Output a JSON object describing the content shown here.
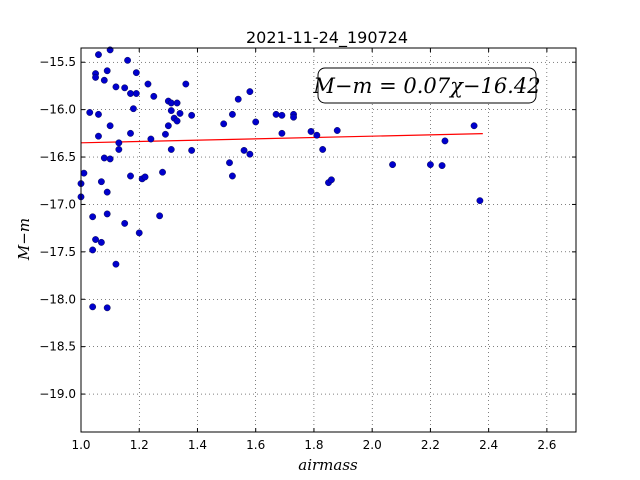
{
  "chart_data": {
    "type": "scatter",
    "title": "2021-11-24_190724",
    "xlabel": "airmass",
    "ylabel": "M−m",
    "xlim": [
      1.0,
      2.7
    ],
    "ylim": [
      -19.4,
      -15.35
    ],
    "y_inverted": true,
    "grid": true,
    "x_ticks": [
      1.0,
      1.2,
      1.4,
      1.6,
      1.8,
      2.0,
      2.2,
      2.4,
      2.6
    ],
    "x_tick_labels": [
      "1.0",
      "1.2",
      "1.4",
      "1.6",
      "1.8",
      "2.0",
      "2.2",
      "2.4",
      "2.6"
    ],
    "y_ticks": [
      -15.5,
      -16.0,
      -16.5,
      -17.0,
      -17.5,
      -18.0,
      -18.5,
      -19.0
    ],
    "y_tick_labels": [
      "−15.5",
      "−16.0",
      "−16.5",
      "−17.0",
      "−17.5",
      "−18.0",
      "−18.5",
      "−19.0"
    ],
    "annotation": "M−m = 0.07χ−16.42",
    "point_color": "#0000cc",
    "fit_color": "#ff0000",
    "points": [
      [
        1.0,
        -16.78
      ],
      [
        1.0,
        -16.92
      ],
      [
        1.01,
        -16.67
      ],
      [
        1.03,
        -16.03
      ],
      [
        1.04,
        -17.13
      ],
      [
        1.04,
        -17.48
      ],
      [
        1.04,
        -18.08
      ],
      [
        1.05,
        -15.62
      ],
      [
        1.05,
        -15.66
      ],
      [
        1.05,
        -17.37
      ],
      [
        1.06,
        -15.42
      ],
      [
        1.06,
        -16.05
      ],
      [
        1.06,
        -16.28
      ],
      [
        1.07,
        -16.76
      ],
      [
        1.07,
        -17.4
      ],
      [
        1.08,
        -16.51
      ],
      [
        1.08,
        -15.69
      ],
      [
        1.09,
        -15.59
      ],
      [
        1.09,
        -16.87
      ],
      [
        1.09,
        -17.1
      ],
      [
        1.09,
        -18.09
      ],
      [
        1.1,
        -15.37
      ],
      [
        1.1,
        -16.17
      ],
      [
        1.1,
        -16.52
      ],
      [
        1.12,
        -17.63
      ],
      [
        1.12,
        -15.76
      ],
      [
        1.13,
        -16.35
      ],
      [
        1.13,
        -16.42
      ],
      [
        1.15,
        -17.2
      ],
      [
        1.15,
        -15.77
      ],
      [
        1.16,
        -15.48
      ],
      [
        1.17,
        -15.83
      ],
      [
        1.17,
        -16.25
      ],
      [
        1.17,
        -16.7
      ],
      [
        1.18,
        -15.99
      ],
      [
        1.19,
        -15.61
      ],
      [
        1.19,
        -15.83
      ],
      [
        1.2,
        -17.3
      ],
      [
        1.21,
        -16.73
      ],
      [
        1.22,
        -16.71
      ],
      [
        1.23,
        -15.73
      ],
      [
        1.24,
        -16.31
      ],
      [
        1.25,
        -15.86
      ],
      [
        1.27,
        -17.12
      ],
      [
        1.28,
        -16.66
      ],
      [
        1.29,
        -16.26
      ],
      [
        1.3,
        -15.91
      ],
      [
        1.3,
        -16.17
      ],
      [
        1.31,
        -15.93
      ],
      [
        1.31,
        -16.01
      ],
      [
        1.31,
        -16.42
      ],
      [
        1.32,
        -16.09
      ],
      [
        1.33,
        -15.93
      ],
      [
        1.33,
        -16.12
      ],
      [
        1.34,
        -16.04
      ],
      [
        1.36,
        -15.73
      ],
      [
        1.38,
        -16.43
      ],
      [
        1.38,
        -16.06
      ],
      [
        1.49,
        -16.15
      ],
      [
        1.51,
        -16.56
      ],
      [
        1.52,
        -16.7
      ],
      [
        1.52,
        -16.05
      ],
      [
        1.54,
        -15.89
      ],
      [
        1.56,
        -16.43
      ],
      [
        1.58,
        -15.81
      ],
      [
        1.58,
        -16.47
      ],
      [
        1.6,
        -16.13
      ],
      [
        1.67,
        -16.05
      ],
      [
        1.69,
        -16.06
      ],
      [
        1.69,
        -16.25
      ],
      [
        1.73,
        -16.05
      ],
      [
        1.73,
        -16.08
      ],
      [
        1.79,
        -16.23
      ],
      [
        1.81,
        -16.27
      ],
      [
        1.83,
        -16.42
      ],
      [
        1.85,
        -16.77
      ],
      [
        1.86,
        -16.74
      ],
      [
        1.88,
        -16.22
      ],
      [
        2.07,
        -16.58
      ],
      [
        2.2,
        -16.58
      ],
      [
        2.24,
        -16.59
      ],
      [
        2.25,
        -16.33
      ],
      [
        2.35,
        -16.17
      ],
      [
        2.37,
        -16.96
      ]
    ],
    "fit_line": {
      "slope": 0.07,
      "intercept": -16.42,
      "x_range": [
        1.0,
        2.38
      ]
    }
  }
}
